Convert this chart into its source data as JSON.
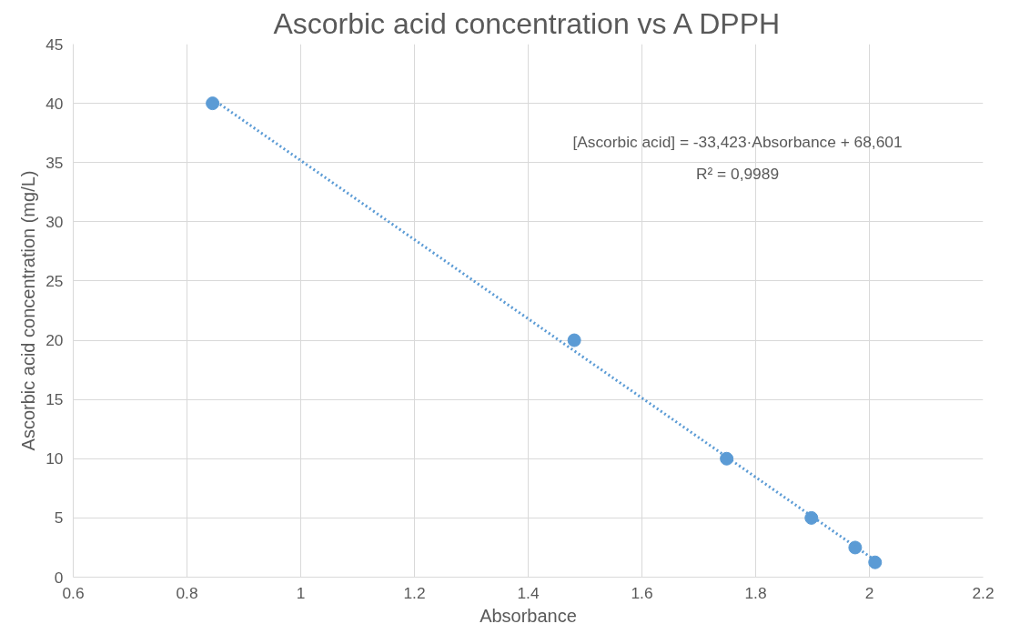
{
  "chart_data": {
    "type": "scatter",
    "title": "Ascorbic acid concentration vs A DPPH",
    "xlabel": "Absorbance",
    "ylabel": "Ascorbic acid concentration (mg/L)",
    "series": [
      {
        "color": "#5b9bd5",
        "marker": "circle",
        "x": [
          0.845,
          1.481,
          1.749,
          1.898,
          1.975,
          2.01
        ],
        "values": [
          40,
          20,
          10,
          5,
          2.5,
          1.25
        ]
      },
      {
        "type": "line",
        "color": "#5b9bd5",
        "line_style": "dotted",
        "marker": "none",
        "x": [
          0.845,
          2.01
        ],
        "values": [
          40.36,
          1.42
        ]
      }
    ],
    "annotations": [
      "[Ascorbic acid] = -33,423·Absorbance + 68,601",
      "R² = 0,9989"
    ],
    "xlim": [
      0.6,
      2.2
    ],
    "xticks": [
      0.6,
      0.8,
      1,
      1.2,
      1.4,
      1.6,
      1.8,
      2,
      2.2
    ],
    "ylim": [
      0,
      45
    ],
    "yticks": [
      0,
      5,
      10,
      15,
      20,
      25,
      30,
      35,
      40,
      45
    ],
    "grid": true
  }
}
